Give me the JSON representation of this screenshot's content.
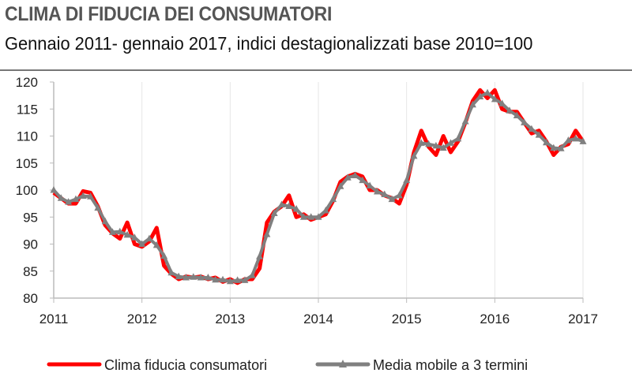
{
  "chart_data": {
    "type": "line",
    "title": "CLIMA DI FIDUCIA DEI CONSUMATORI",
    "subtitle": "Gennaio 2011- gennaio 2017, indici destagionalizzati base 2010=100",
    "xlabel": "",
    "ylabel": "",
    "x_start": "2011-01",
    "x_end": "2017-01",
    "x_frequency": "monthly",
    "x_ticks": [
      "2011",
      "2012",
      "2013",
      "2014",
      "2015",
      "2016",
      "2017"
    ],
    "y_ticks": [
      "80",
      "85",
      "90",
      "95",
      "100",
      "105",
      "110",
      "115",
      "120"
    ],
    "ylim": [
      80,
      120
    ],
    "grid": "vertical gridlines at years",
    "legend_position": "bottom",
    "series": [
      {
        "name": "Clima fiducia consumatori",
        "color": "#ff0000",
        "marker": "none",
        "values": [
          99.5,
          98.5,
          97.5,
          97.5,
          99.8,
          99.5,
          97,
          93.5,
          92,
          91,
          94,
          90,
          89.5,
          90.5,
          93,
          86,
          84.5,
          83.5,
          84,
          83.8,
          84,
          83.5,
          83.8,
          83,
          83.5,
          82.8,
          83.5,
          83.5,
          85.5,
          94,
          96,
          97,
          99,
          95,
          95.5,
          94.5,
          95,
          95.5,
          98,
          101.5,
          102.5,
          103,
          102.5,
          100,
          100,
          99,
          98.5,
          97.5,
          101,
          107,
          111,
          108,
          106.5,
          110,
          107,
          109,
          112.5,
          116.5,
          118.5,
          117,
          118.5,
          115,
          114.5,
          114.5,
          112.5,
          110.5,
          111,
          109,
          106.5,
          108,
          108.5,
          111,
          109
        ]
      },
      {
        "name": "Media mobile a 3 termini",
        "color": "#808080",
        "marker": "triangle",
        "values": [
          100,
          98.5,
          97.8,
          98.3,
          98.9,
          98.8,
          96.7,
          94.2,
          92.2,
          92.3,
          91.7,
          91.2,
          90,
          91,
          89.8,
          87.8,
          84.7,
          84,
          83.8,
          83.9,
          83.8,
          83.8,
          83.4,
          83.4,
          83.1,
          83.3,
          83.3,
          84.2,
          87.7,
          91.8,
          95.7,
          97.3,
          97,
          96.5,
          95,
          95,
          95,
          96.2,
          98.3,
          100.7,
          102.3,
          102.7,
          101.8,
          100.8,
          99.7,
          99.2,
          98.3,
          99,
          101.8,
          106.3,
          108.7,
          108.5,
          108.2,
          107.8,
          108.7,
          109.5,
          112.7,
          115.8,
          117.3,
          118,
          116.8,
          116,
          114.7,
          113.8,
          112.5,
          111.3,
          110.2,
          108.8,
          107.8,
          107.7,
          109.2,
          109.5,
          109
        ]
      }
    ]
  }
}
